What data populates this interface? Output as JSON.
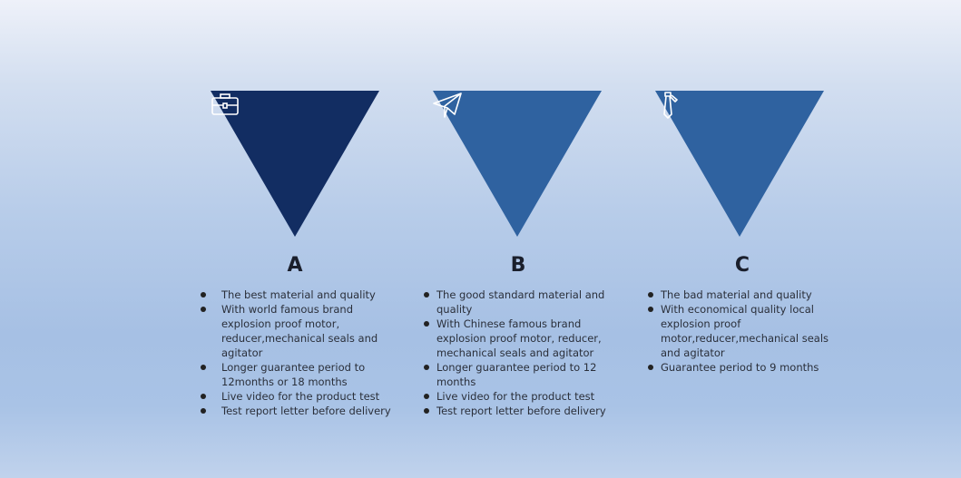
{
  "colors": {
    "A": "#122d62",
    "B": "#2f62a0",
    "C": "#2f62a0"
  },
  "columns": [
    {
      "label": "A",
      "icon": "briefcase-icon",
      "items": [
        "The best material and quality",
        "With world famous brand explosion proof motor, reducer,mechanical seals and agitator",
        "Longer guarantee period to 12months or 18 months",
        "Live video for the product test",
        "Test report letter before delivery"
      ]
    },
    {
      "label": "B",
      "icon": "paper-plane-icon",
      "items": [
        "The good standard material and quality",
        "With Chinese famous brand explosion proof motor, reducer, mechanical seals and agitator",
        "Longer guarantee period to 12 months",
        "Live video for the product test",
        "Test report letter before delivery"
      ]
    },
    {
      "label": "C",
      "icon": "necktie-icon",
      "items": [
        "The bad material and quality",
        "With economical quality local explosion proof motor,reducer,mechanical seals and agitator",
        "Guarantee period to 9 months"
      ]
    }
  ]
}
